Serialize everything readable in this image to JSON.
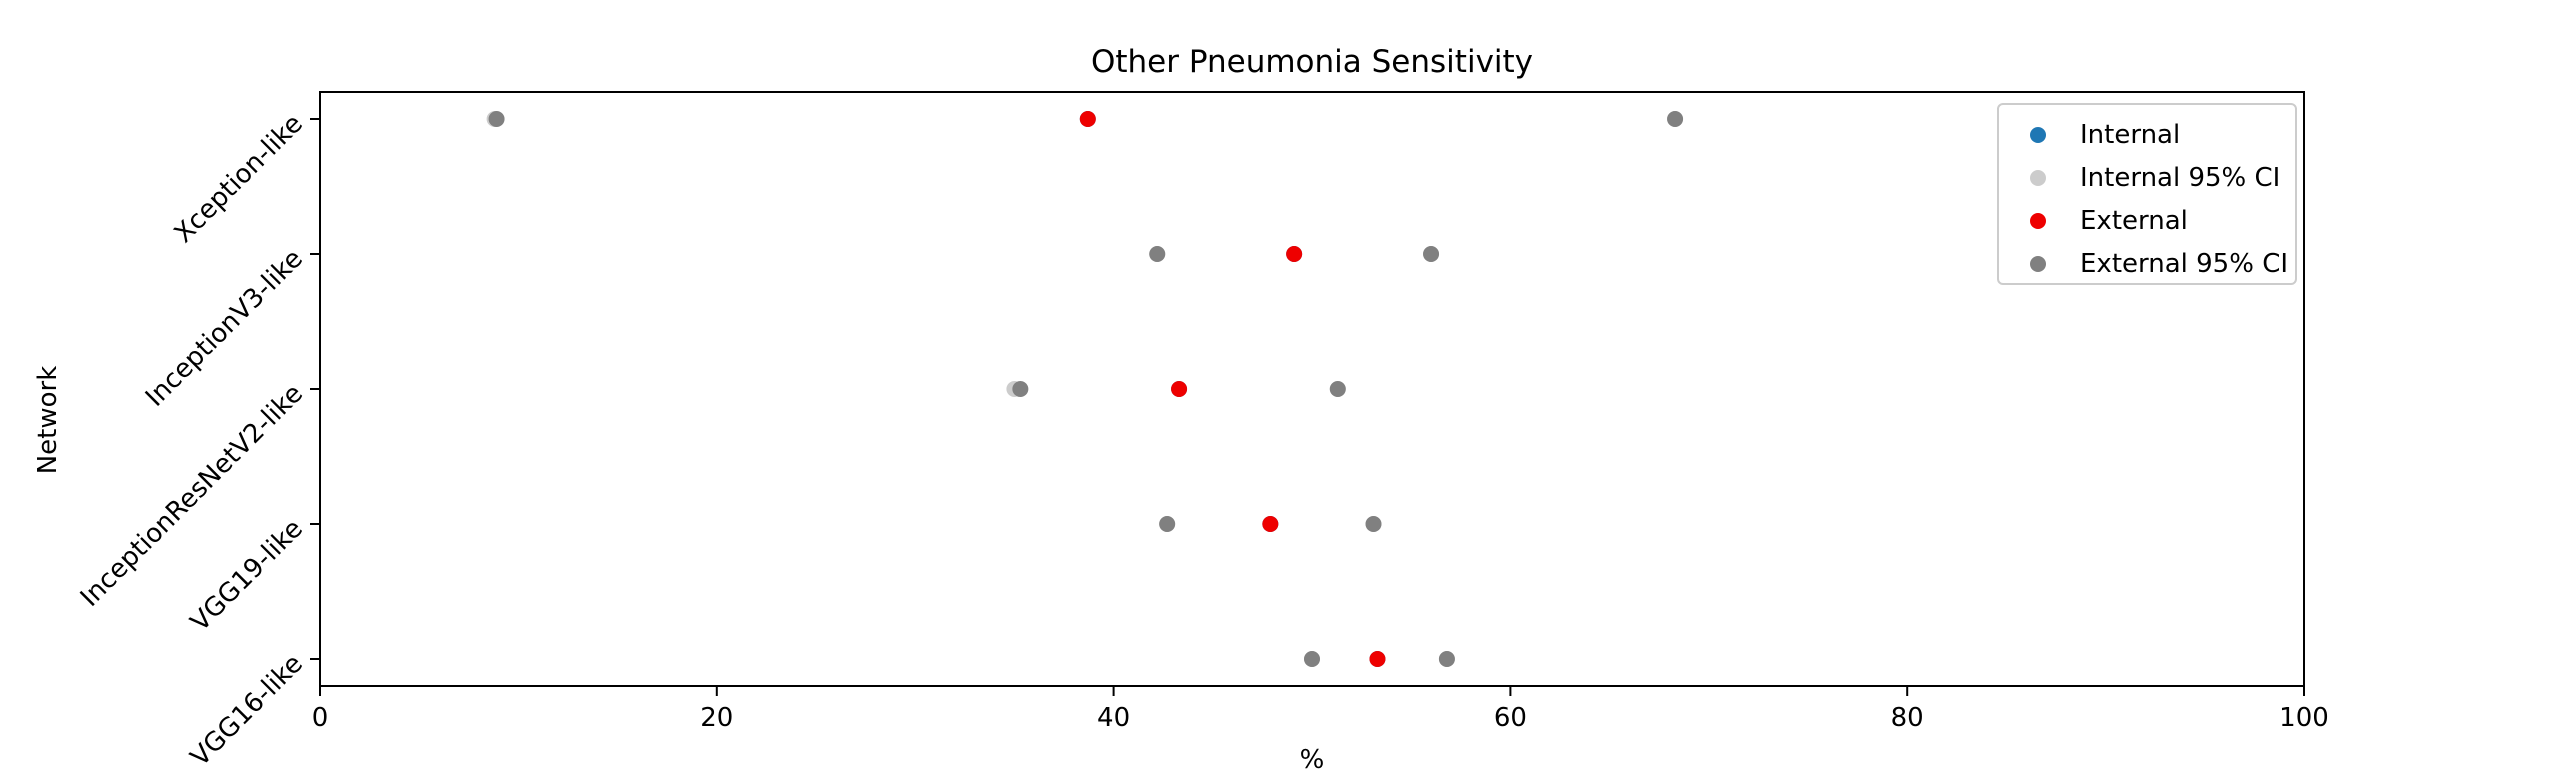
{
  "chart_data": {
    "type": "scatter",
    "title": "Other Pneumonia Sensitivity",
    "xlabel": "%",
    "ylabel": "Network",
    "xlim": [
      0,
      100
    ],
    "xticks": [
      0,
      20,
      40,
      60,
      80,
      100
    ],
    "categories": [
      "Xception-like",
      "InceptionV3-like",
      "InceptionResNetV2-like",
      "VGG19-like",
      "VGG16-like"
    ],
    "legend_position": "top-right",
    "grid": false,
    "series": [
      {
        "name": "Internal",
        "color": "#1f77b4",
        "values": [
          38.7,
          49.1,
          43.3,
          47.9,
          53.3
        ]
      },
      {
        "name": "Internal 95% CI",
        "color": "#cccccc",
        "lower": [
          8.8,
          42.2,
          35.0,
          42.7,
          50.0
        ],
        "upper": [
          68.3,
          56.0,
          51.3,
          53.1,
          56.8
        ]
      },
      {
        "name": "External",
        "color": "#ee0000",
        "values": [
          38.7,
          49.1,
          43.3,
          47.9,
          53.3
        ]
      },
      {
        "name": "External 95% CI",
        "color": "#808080",
        "lower": [
          8.9,
          42.2,
          35.3,
          42.7,
          50.0
        ],
        "upper": [
          68.3,
          56.0,
          51.3,
          53.1,
          56.8
        ]
      }
    ]
  }
}
